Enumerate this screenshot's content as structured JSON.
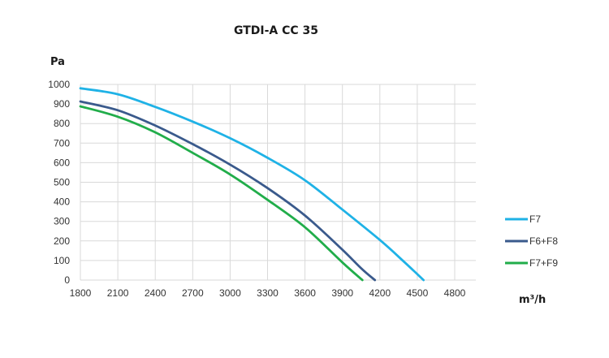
{
  "chart_data": {
    "type": "line",
    "title": "GTDI-A CC 35",
    "ylabel": "Pa",
    "xlabel": "m³/h",
    "xlim": [
      1800,
      4800
    ],
    "ylim": [
      0,
      1000
    ],
    "x_ticks": [
      "1800",
      "2100",
      "2400",
      "2700",
      "3000",
      "3300",
      "3600",
      "3900",
      "4200",
      "4500",
      "4800"
    ],
    "y_ticks": [
      "0",
      "100",
      "200",
      "300",
      "400",
      "500",
      "600",
      "700",
      "800",
      "900",
      "1000"
    ],
    "grid": "vertical",
    "legend_position": "right",
    "series": [
      {
        "name": "F7",
        "color": "#1fb2e6",
        "points": [
          [
            1800,
            980
          ],
          [
            2100,
            950
          ],
          [
            2400,
            885
          ],
          [
            2700,
            810
          ],
          [
            3000,
            725
          ],
          [
            3300,
            625
          ],
          [
            3600,
            510
          ],
          [
            3900,
            360
          ],
          [
            4200,
            205
          ],
          [
            4400,
            90
          ],
          [
            4550,
            0
          ]
        ]
      },
      {
        "name": "F6+F8",
        "color": "#3a5a8c",
        "points": [
          [
            1800,
            913
          ],
          [
            2100,
            868
          ],
          [
            2400,
            790
          ],
          [
            2700,
            695
          ],
          [
            3000,
            590
          ],
          [
            3300,
            470
          ],
          [
            3600,
            330
          ],
          [
            3900,
            155
          ],
          [
            4050,
            60
          ],
          [
            4160,
            0
          ]
        ]
      },
      {
        "name": "F7+F9",
        "color": "#21ad4a",
        "points": [
          [
            1800,
            888
          ],
          [
            2100,
            835
          ],
          [
            2400,
            755
          ],
          [
            2700,
            650
          ],
          [
            3000,
            540
          ],
          [
            3300,
            410
          ],
          [
            3600,
            270
          ],
          [
            3900,
            90
          ],
          [
            4060,
            0
          ]
        ]
      }
    ]
  }
}
